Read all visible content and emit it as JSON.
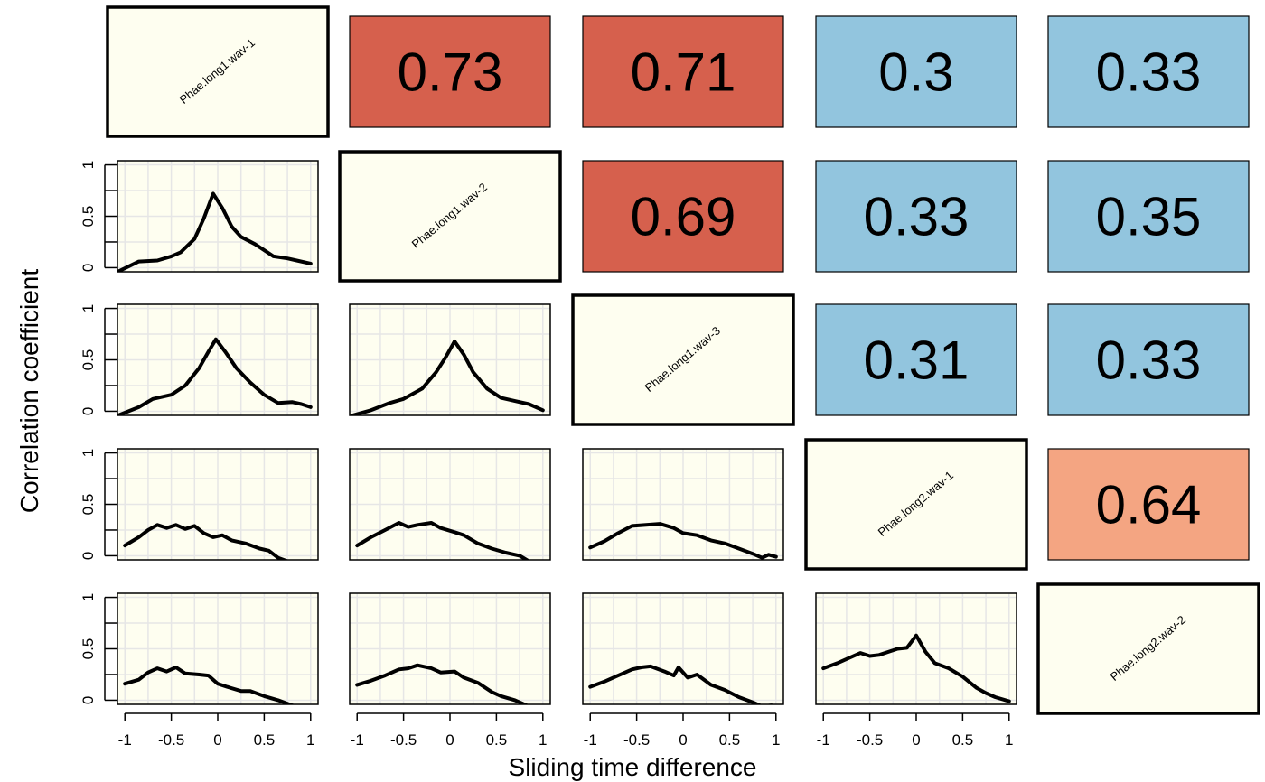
{
  "chart_data": {
    "type": "pairs-matrix",
    "xlabel": "Sliding time difference",
    "ylabel": "Correlation coefficient",
    "xlim": [
      -1,
      1
    ],
    "ylim": [
      0,
      1
    ],
    "x_tick_labels": [
      "-1",
      "-0.5",
      "0",
      "0.5",
      "1"
    ],
    "y_tick_labels": [
      "0",
      "0.5",
      "1"
    ],
    "labels": [
      "Phae.long1.wav-1",
      "Phae.long1.wav-2",
      "Phae.long1.wav-3",
      "Phae.long2.wav-1",
      "Phae.long2.wav-2"
    ],
    "colors": {
      "high": "#d6604d",
      "mid": "#f4a582",
      "low": "#92c5de",
      "diag": "#fefef0",
      "curve": "#000000"
    },
    "upper": [
      {
        "row": 0,
        "col": 1,
        "value": "0.73",
        "level": "high"
      },
      {
        "row": 0,
        "col": 2,
        "value": "0.71",
        "level": "high"
      },
      {
        "row": 0,
        "col": 3,
        "value": "0.3",
        "level": "low"
      },
      {
        "row": 0,
        "col": 4,
        "value": "0.33",
        "level": "low"
      },
      {
        "row": 1,
        "col": 2,
        "value": "0.69",
        "level": "high"
      },
      {
        "row": 1,
        "col": 3,
        "value": "0.33",
        "level": "low"
      },
      {
        "row": 1,
        "col": 4,
        "value": "0.35",
        "level": "low"
      },
      {
        "row": 2,
        "col": 3,
        "value": "0.31",
        "level": "low"
      },
      {
        "row": 2,
        "col": 4,
        "value": "0.33",
        "level": "low"
      },
      {
        "row": 3,
        "col": 4,
        "value": "0.64",
        "level": "mid"
      }
    ],
    "lower": [
      {
        "row": 1,
        "col": 0,
        "series": [
          [
            -1.1,
            -0.05
          ],
          [
            -0.85,
            0.06
          ],
          [
            -0.65,
            0.07
          ],
          [
            -0.5,
            0.11
          ],
          [
            -0.4,
            0.15
          ],
          [
            -0.25,
            0.28
          ],
          [
            -0.15,
            0.48
          ],
          [
            -0.05,
            0.72
          ],
          [
            0.05,
            0.58
          ],
          [
            0.15,
            0.4
          ],
          [
            0.25,
            0.3
          ],
          [
            0.4,
            0.23
          ],
          [
            0.5,
            0.17
          ],
          [
            0.6,
            0.11
          ],
          [
            0.75,
            0.09
          ],
          [
            0.85,
            0.07
          ],
          [
            1.0,
            0.04
          ]
        ]
      },
      {
        "row": 2,
        "col": 0,
        "series": [
          [
            -1.1,
            -0.05
          ],
          [
            -0.85,
            0.04
          ],
          [
            -0.7,
            0.12
          ],
          [
            -0.5,
            0.16
          ],
          [
            -0.35,
            0.25
          ],
          [
            -0.2,
            0.42
          ],
          [
            -0.1,
            0.58
          ],
          [
            -0.02,
            0.7
          ],
          [
            0.08,
            0.58
          ],
          [
            0.2,
            0.42
          ],
          [
            0.35,
            0.28
          ],
          [
            0.5,
            0.16
          ],
          [
            0.65,
            0.08
          ],
          [
            0.8,
            0.09
          ],
          [
            0.9,
            0.07
          ],
          [
            1.0,
            0.04
          ]
        ]
      },
      {
        "row": 2,
        "col": 1,
        "series": [
          [
            -1.05,
            -0.04
          ],
          [
            -0.85,
            0.01
          ],
          [
            -0.65,
            0.08
          ],
          [
            -0.5,
            0.12
          ],
          [
            -0.3,
            0.22
          ],
          [
            -0.15,
            0.38
          ],
          [
            -0.05,
            0.52
          ],
          [
            0.05,
            0.68
          ],
          [
            0.15,
            0.55
          ],
          [
            0.25,
            0.38
          ],
          [
            0.4,
            0.22
          ],
          [
            0.55,
            0.13
          ],
          [
            0.7,
            0.1
          ],
          [
            0.85,
            0.07
          ],
          [
            1.0,
            0.01
          ]
        ]
      },
      {
        "row": 3,
        "col": 0,
        "series": [
          [
            -1.0,
            0.1
          ],
          [
            -0.85,
            0.18
          ],
          [
            -0.75,
            0.25
          ],
          [
            -0.65,
            0.3
          ],
          [
            -0.55,
            0.27
          ],
          [
            -0.45,
            0.3
          ],
          [
            -0.35,
            0.26
          ],
          [
            -0.25,
            0.29
          ],
          [
            -0.15,
            0.22
          ],
          [
            -0.05,
            0.18
          ],
          [
            0.05,
            0.2
          ],
          [
            0.15,
            0.15
          ],
          [
            0.3,
            0.12
          ],
          [
            0.45,
            0.07
          ],
          [
            0.55,
            0.05
          ],
          [
            0.65,
            -0.02
          ],
          [
            0.8,
            -0.07
          ],
          [
            1.0,
            -0.15
          ]
        ]
      },
      {
        "row": 3,
        "col": 1,
        "series": [
          [
            -1.0,
            0.1
          ],
          [
            -0.85,
            0.18
          ],
          [
            -0.7,
            0.25
          ],
          [
            -0.55,
            0.32
          ],
          [
            -0.45,
            0.28
          ],
          [
            -0.35,
            0.3
          ],
          [
            -0.2,
            0.32
          ],
          [
            -0.1,
            0.27
          ],
          [
            0.05,
            0.23
          ],
          [
            0.15,
            0.2
          ],
          [
            0.3,
            0.12
          ],
          [
            0.45,
            0.07
          ],
          [
            0.6,
            0.03
          ],
          [
            0.75,
            0.0
          ],
          [
            0.9,
            -0.08
          ],
          [
            1.0,
            -0.12
          ]
        ]
      },
      {
        "row": 3,
        "col": 2,
        "series": [
          [
            -1.0,
            0.08
          ],
          [
            -0.85,
            0.14
          ],
          [
            -0.7,
            0.22
          ],
          [
            -0.55,
            0.29
          ],
          [
            -0.4,
            0.3
          ],
          [
            -0.25,
            0.31
          ],
          [
            -0.1,
            0.27
          ],
          [
            0.0,
            0.22
          ],
          [
            0.15,
            0.2
          ],
          [
            0.3,
            0.15
          ],
          [
            0.45,
            0.12
          ],
          [
            0.6,
            0.07
          ],
          [
            0.75,
            0.02
          ],
          [
            0.85,
            -0.02
          ],
          [
            0.92,
            0.01
          ],
          [
            1.0,
            -0.01
          ]
        ]
      },
      {
        "row": 4,
        "col": 0,
        "series": [
          [
            -1.0,
            0.16
          ],
          [
            -0.85,
            0.2
          ],
          [
            -0.75,
            0.27
          ],
          [
            -0.65,
            0.31
          ],
          [
            -0.55,
            0.28
          ],
          [
            -0.45,
            0.32
          ],
          [
            -0.35,
            0.26
          ],
          [
            -0.2,
            0.25
          ],
          [
            -0.1,
            0.24
          ],
          [
            0.0,
            0.16
          ],
          [
            0.1,
            0.13
          ],
          [
            0.25,
            0.09
          ],
          [
            0.35,
            0.09
          ],
          [
            0.5,
            0.04
          ],
          [
            0.65,
            0.0
          ],
          [
            0.8,
            -0.05
          ],
          [
            1.0,
            -0.1
          ]
        ]
      },
      {
        "row": 4,
        "col": 1,
        "series": [
          [
            -1.0,
            0.15
          ],
          [
            -0.85,
            0.19
          ],
          [
            -0.7,
            0.24
          ],
          [
            -0.55,
            0.3
          ],
          [
            -0.45,
            0.31
          ],
          [
            -0.35,
            0.34
          ],
          [
            -0.2,
            0.31
          ],
          [
            -0.1,
            0.27
          ],
          [
            0.05,
            0.28
          ],
          [
            0.15,
            0.22
          ],
          [
            0.3,
            0.17
          ],
          [
            0.45,
            0.08
          ],
          [
            0.55,
            0.04
          ],
          [
            0.7,
            0.0
          ],
          [
            0.85,
            -0.06
          ],
          [
            1.0,
            -0.1
          ]
        ]
      },
      {
        "row": 4,
        "col": 2,
        "series": [
          [
            -1.0,
            0.13
          ],
          [
            -0.85,
            0.18
          ],
          [
            -0.7,
            0.24
          ],
          [
            -0.55,
            0.3
          ],
          [
            -0.45,
            0.32
          ],
          [
            -0.35,
            0.33
          ],
          [
            -0.2,
            0.28
          ],
          [
            -0.1,
            0.24
          ],
          [
            -0.05,
            0.32
          ],
          [
            0.05,
            0.22
          ],
          [
            0.15,
            0.25
          ],
          [
            0.3,
            0.15
          ],
          [
            0.45,
            0.1
          ],
          [
            0.6,
            0.03
          ],
          [
            0.75,
            -0.02
          ],
          [
            0.85,
            -0.06
          ],
          [
            0.95,
            -0.05
          ],
          [
            1.0,
            -0.06
          ]
        ]
      },
      {
        "row": 4,
        "col": 3,
        "series": [
          [
            -1.0,
            0.31
          ],
          [
            -0.85,
            0.36
          ],
          [
            -0.7,
            0.42
          ],
          [
            -0.6,
            0.46
          ],
          [
            -0.5,
            0.43
          ],
          [
            -0.4,
            0.44
          ],
          [
            -0.3,
            0.47
          ],
          [
            -0.2,
            0.5
          ],
          [
            -0.1,
            0.51
          ],
          [
            0.0,
            0.63
          ],
          [
            0.1,
            0.47
          ],
          [
            0.2,
            0.36
          ],
          [
            0.35,
            0.31
          ],
          [
            0.5,
            0.23
          ],
          [
            0.65,
            0.12
          ],
          [
            0.75,
            0.07
          ],
          [
            0.85,
            0.03
          ],
          [
            1.0,
            -0.01
          ]
        ]
      }
    ]
  }
}
